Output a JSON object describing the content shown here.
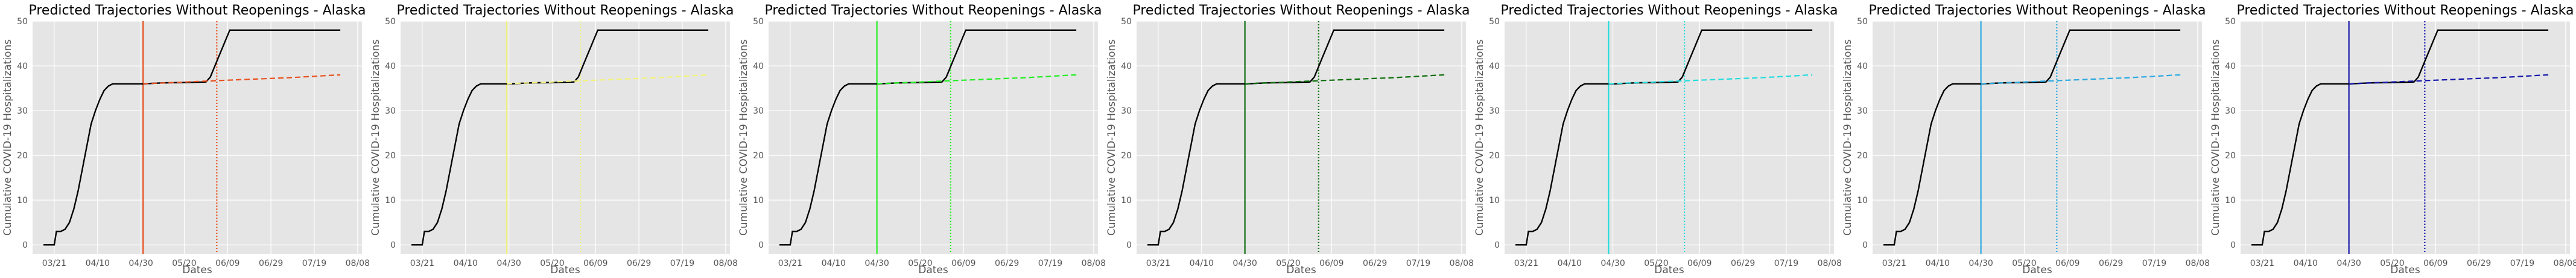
{
  "chart_data": {
    "type": "line",
    "title": "Predicted Trajectories Without Reopenings - Alaska",
    "xlabel": "Dates",
    "ylabel": "Cumulative COVID-19 Hospitalizations",
    "x_ticks": [
      "03/21",
      "04/10",
      "04/30",
      "05/20",
      "06/09",
      "06/29",
      "07/19",
      "08/08"
    ],
    "y_ticks": [
      0,
      10,
      20,
      30,
      40,
      50
    ],
    "xlim": [
      "03/11",
      "08/10"
    ],
    "ylim": [
      -2,
      50
    ],
    "grid": true,
    "observed": {
      "color": "#000000",
      "x": [
        "03/16",
        "03/18",
        "03/19",
        "03/21",
        "03/22",
        "03/24",
        "03/26",
        "03/28",
        "03/30",
        "04/01",
        "04/03",
        "04/05",
        "04/07",
        "04/09",
        "04/11",
        "04/13",
        "04/15",
        "04/17",
        "04/20",
        "04/23",
        "05/01",
        "05/10",
        "05/20",
        "05/30",
        "06/01",
        "06/04",
        "06/07",
        "06/10",
        "06/12",
        "07/01",
        "07/20",
        "07/31"
      ],
      "y": [
        0,
        0,
        0,
        0,
        3,
        3,
        3.5,
        5,
        8,
        12,
        17,
        22,
        27,
        30,
        32.5,
        34.5,
        35.5,
        36,
        36,
        36,
        36,
        36.2,
        36.3,
        36.4,
        37.5,
        41,
        44.5,
        48,
        48,
        48,
        48,
        48
      ]
    },
    "panels": [
      {
        "color": "#e8501e",
        "line_date": "05/01",
        "dotted_date": "06/04",
        "projection": {
          "x": [
            "05/01",
            "06/09",
            "07/09",
            "07/31"
          ],
          "y": [
            36,
            36.8,
            37.4,
            38
          ]
        }
      },
      {
        "color": "#f2f27a",
        "line_date": "04/29",
        "dotted_date": "06/02",
        "projection": {
          "x": [
            "04/29",
            "06/09",
            "07/09",
            "07/31"
          ],
          "y": [
            36,
            36.8,
            37.4,
            38
          ]
        }
      },
      {
        "color": "#22ee22",
        "line_date": "04/30",
        "dotted_date": "06/03",
        "projection": {
          "x": [
            "04/30",
            "06/09",
            "07/09",
            "07/31"
          ],
          "y": [
            36,
            36.8,
            37.4,
            38
          ]
        }
      },
      {
        "color": "#0b6e0b",
        "line_date": "04/30",
        "dotted_date": "06/03",
        "projection": {
          "x": [
            "04/30",
            "06/09",
            "07/09",
            "07/31"
          ],
          "y": [
            36,
            36.8,
            37.4,
            38
          ]
        }
      },
      {
        "color": "#22dddd",
        "line_date": "04/28",
        "dotted_date": "06/02",
        "projection": {
          "x": [
            "04/28",
            "06/09",
            "07/09",
            "07/31"
          ],
          "y": [
            36,
            36.8,
            37.4,
            38
          ]
        }
      },
      {
        "color": "#2aa9e0",
        "line_date": "04/30",
        "dotted_date": "06/04",
        "projection": {
          "x": [
            "04/30",
            "06/09",
            "07/09",
            "07/31"
          ],
          "y": [
            36,
            36.8,
            37.4,
            38
          ]
        }
      },
      {
        "color": "#1414aa",
        "line_date": "04/30",
        "dotted_date": "06/04",
        "projection": {
          "x": [
            "04/30",
            "06/09",
            "07/09",
            "07/31"
          ],
          "y": [
            36,
            36.8,
            37.4,
            38
          ]
        }
      }
    ]
  },
  "colors": {
    "plot_background": "#e5e5e5",
    "grid": "#ffffff",
    "tick_text": "#555555"
  }
}
